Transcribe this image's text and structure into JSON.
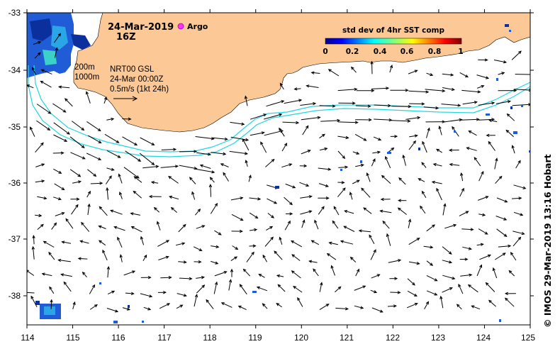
{
  "map": {
    "title_date": "24-Mar-2019",
    "title_hour": "16Z",
    "argo_label": "Argo",
    "colors": {
      "land": "#fcc896",
      "isobath": "#22d6e0",
      "arrow": "#000000",
      "argo_marker": "#ff33ff",
      "frame": "#000000"
    },
    "isobath_labels": [
      "200m",
      "1000m"
    ],
    "product_lines": [
      "NRT00 GSL",
      "24-Mar 00:00Z",
      "0.5m/s (1kt 24h)"
    ],
    "colorbar": {
      "title": "std dev of 4hr SST comp",
      "ticks": [
        "0",
        "0.2",
        "0.4",
        "0.6",
        "0.8",
        "1"
      ],
      "colormap": "jet"
    },
    "axes": {
      "lon_ticks": [
        "114",
        "115",
        "116",
        "117",
        "118",
        "119",
        "120",
        "121",
        "122",
        "123",
        "124",
        "125"
      ],
      "lat_ticks": [
        "-33",
        "-34",
        "-35",
        "-36",
        "-37",
        "-38"
      ],
      "lon_range": [
        114,
        125
      ],
      "lat_range": [
        -38.55,
        -33
      ]
    },
    "credit": "© IMOS 29-Mar-2019 13:16 Hobart"
  }
}
